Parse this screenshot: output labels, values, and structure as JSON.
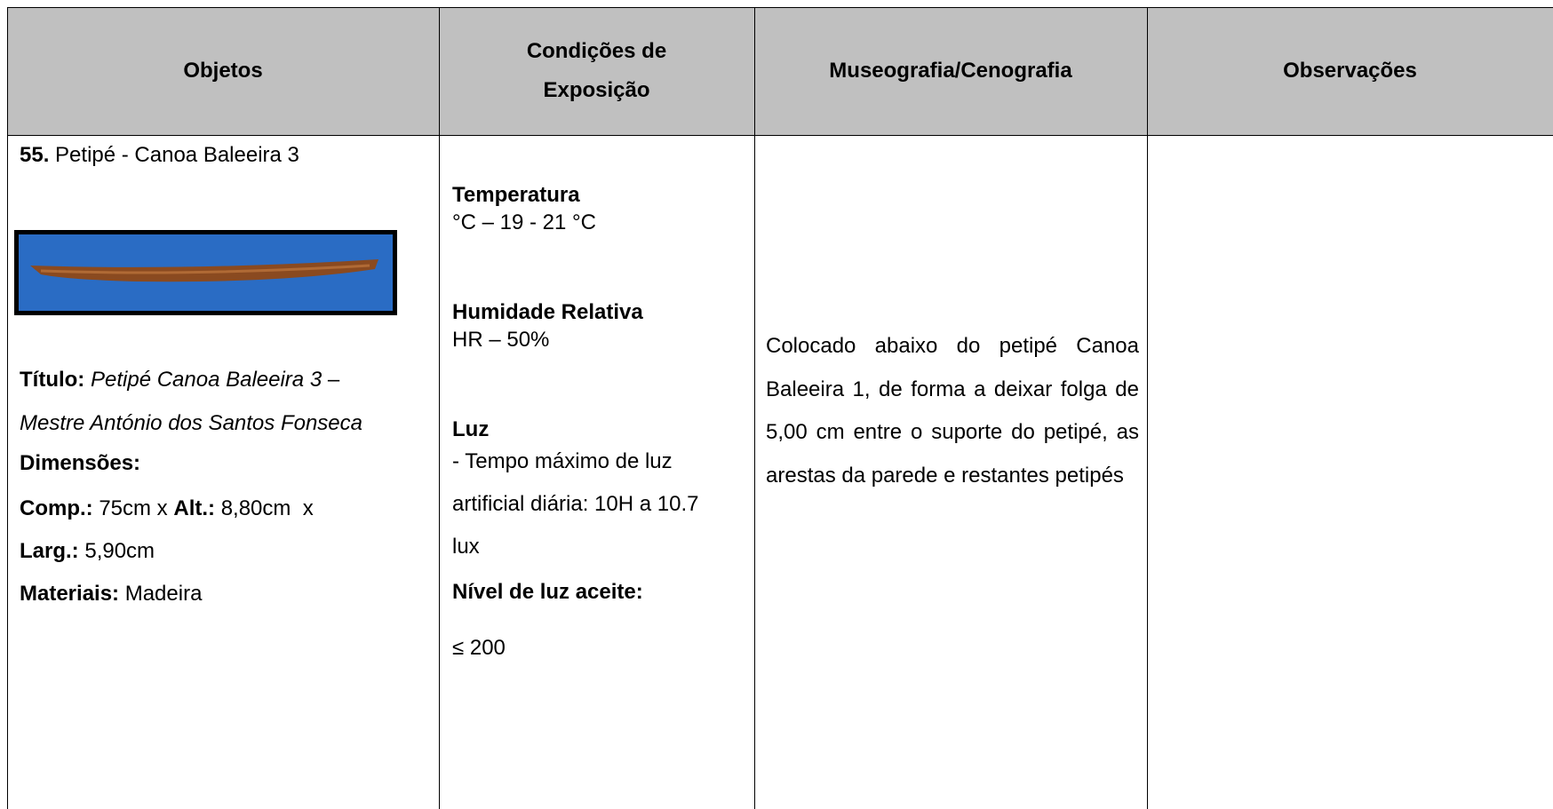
{
  "table": {
    "headers": [
      "Objetos",
      "Condições de Exposição",
      "Museografia/Cenografia",
      "Observações"
    ],
    "object": {
      "number": "55.",
      "name": "Petipé - Canoa Baleeira 3",
      "title_label": "Título:",
      "title_lines": [
        "Petipé Canoa Baleeira 3",
        "Mestre António dos Santos Fonseca"
      ],
      "title_dash": "–",
      "dimensions_label": "Dimensões:",
      "comp_label": "Comp.:",
      "comp": "75cm x",
      "alt_label": "Alt.:",
      "alt": "8,80cm  x",
      "larg_label": "Larg.:",
      "larg": "5,90cm",
      "materials_label": "Materiais:",
      "materials": "Madeira"
    },
    "conditions": {
      "temperature_label": "Temperatura",
      "temperature": "°C – 19 - 21 °C",
      "humidity_label": "Humidade Relativa",
      "humidity": "HR – 50%",
      "light_label": "Luz",
      "light_lines": [
        "- Tempo máximo de luz",
        "artificial diária: 10H a 10.7",
        "lux"
      ],
      "light_level_label": "Nível de luz aceite:",
      "light_level": "≤ 200"
    },
    "museography": "Colocado abaixo do petipé Canoa Baleeira 1, de forma a deixar folga de 5,00 cm entre o suporte do petipé, as arestas da parede e restantes petipés"
  }
}
